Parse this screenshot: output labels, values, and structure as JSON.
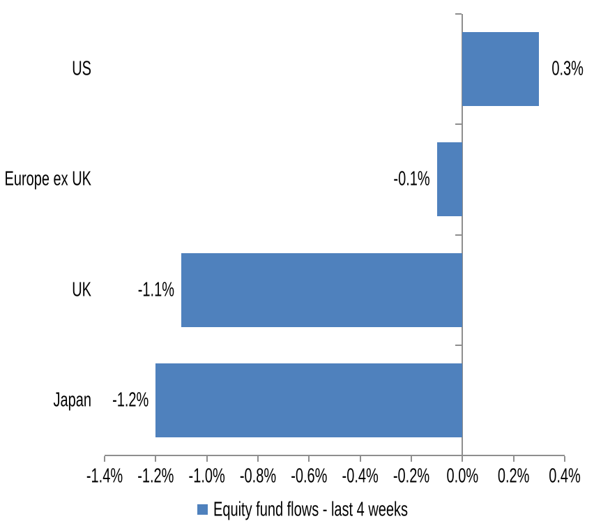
{
  "chart_data": {
    "type": "bar",
    "orientation": "horizontal",
    "title": "",
    "xlabel": "",
    "ylabel": "",
    "categories": [
      "US",
      "Europe ex UK",
      "UK",
      "Japan"
    ],
    "series": [
      {
        "name": "Equity fund flows - last 4 weeks",
        "values": [
          0.3,
          -0.1,
          -1.1,
          -1.2
        ],
        "data_labels": [
          "0.3%",
          "-0.1%",
          "-1.1%",
          "-1.2%"
        ]
      }
    ],
    "value_unit": "%",
    "xlim": [
      -1.4,
      0.4
    ],
    "x_tick_step": 0.2,
    "x_tick_labels": [
      "-1.4%",
      "-1.2%",
      "-1.0%",
      "-0.8%",
      "-0.6%",
      "-0.4%",
      "-0.2%",
      "0.0%",
      "0.2%",
      "0.4%"
    ],
    "grid": false,
    "legend_position": "bottom",
    "colors": {
      "bar": "#4F81BD",
      "axis": "#8E8E8E",
      "text": "#000000",
      "background": "#FFFFFF"
    }
  },
  "legend": {
    "label": "Equity fund flows - last 4 weeks",
    "swatch_color": "#4F81BD"
  }
}
